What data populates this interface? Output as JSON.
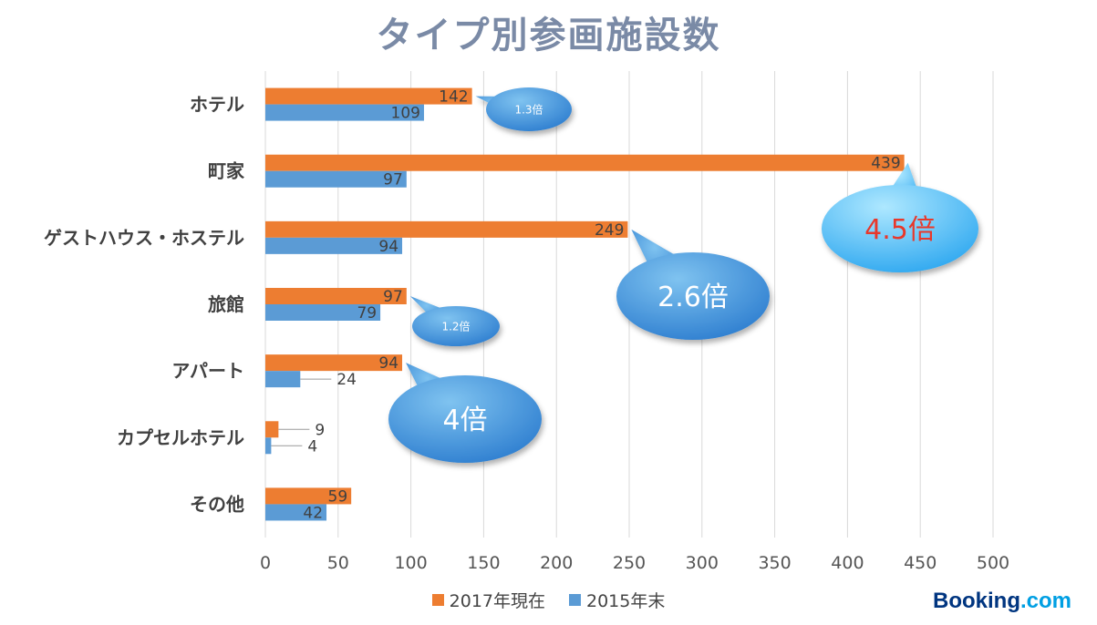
{
  "chart_data": {
    "type": "bar",
    "orientation": "horizontal",
    "title": "タイプ別参画施設数",
    "categories": [
      "ホテル",
      "町家",
      "ゲストハウス・ホステル",
      "旅館",
      "アパート",
      "カプセルホテル",
      "その他"
    ],
    "series": [
      {
        "name": "2017年現在",
        "color": "#ed7d31",
        "values": [
          142,
          439,
          249,
          97,
          94,
          9,
          59
        ]
      },
      {
        "name": "2015年末",
        "color": "#5b9bd5",
        "values": [
          109,
          97,
          94,
          79,
          24,
          4,
          42
        ]
      }
    ],
    "xlim": [
      0,
      500
    ],
    "x_ticks": [
      0,
      50,
      100,
      150,
      200,
      250,
      300,
      350,
      400,
      450,
      500
    ],
    "grid": "vertical",
    "legend": "bottom",
    "annotations": [
      {
        "category": "ホテル",
        "text": "1.3倍",
        "color": "#ffffff"
      },
      {
        "category": "町家",
        "text": "4.5倍",
        "color": "#e8382b"
      },
      {
        "category": "ゲストハウス・ホステル",
        "text": "2.6倍",
        "color": "#ffffff"
      },
      {
        "category": "旅館",
        "text": "1.2倍",
        "color": "#ffffff"
      },
      {
        "category": "アパート",
        "text": "4倍",
        "color": "#ffffff"
      }
    ]
  },
  "brand": {
    "part1": "Booking",
    "part2": ".com"
  }
}
